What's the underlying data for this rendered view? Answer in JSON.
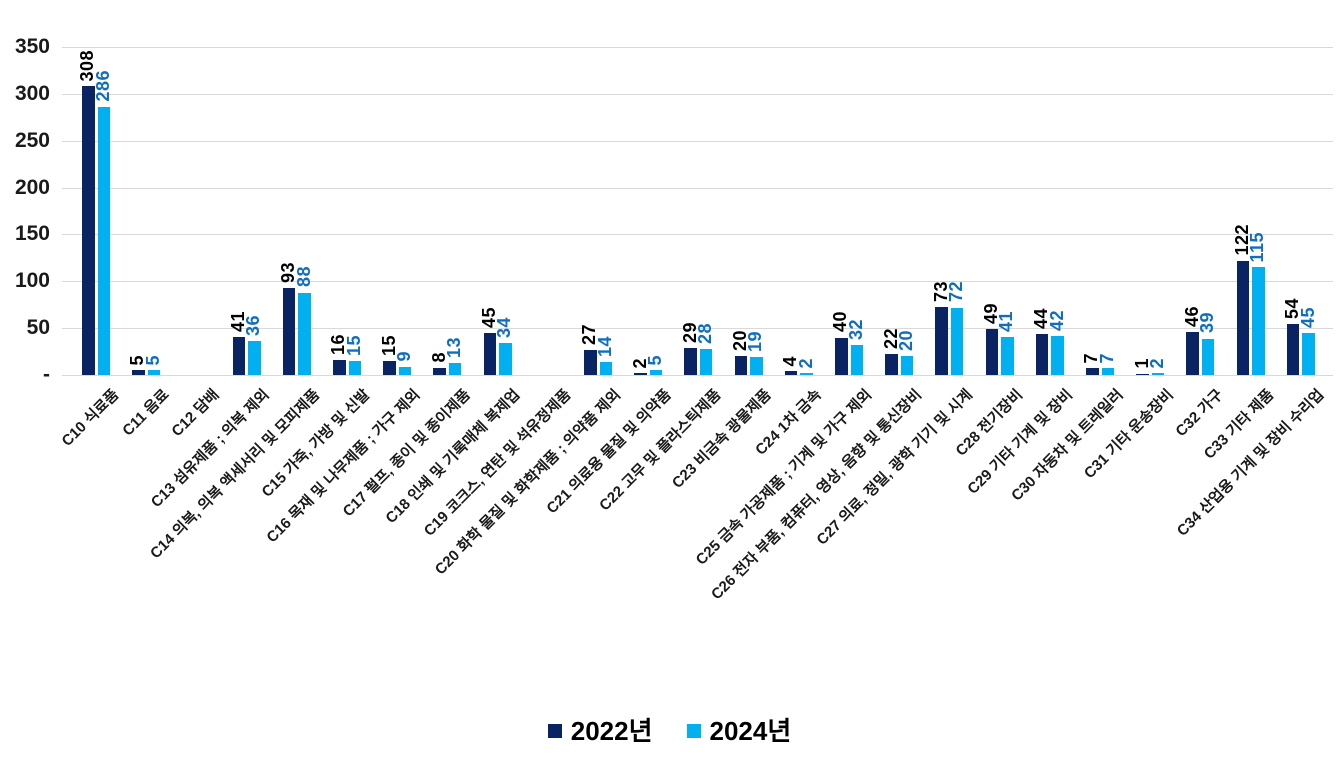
{
  "chart_data": {
    "type": "bar",
    "title": "",
    "categories": [
      "C10 식료품",
      "C11 음료",
      "C12 담배",
      "C13 섬유제품 ; 의복 제외",
      "C14 의복, 의복 액세서리 및 모피제품",
      "C15 가죽, 가방 및 신발",
      "C16 목재 및 나무제품 ; 가구 제외",
      "C17 펄프, 종이 및 종이제품",
      "C18 인쇄 및 기록매체 복제업",
      "C19 코크스, 연탄 및 석유정제품",
      "C20 화학 물질 및 화학제품 ; 의약품 제외",
      "C21 의료용 물질 및 의약품",
      "C22 고무 및 플라스틱제품",
      "C23 비금속 광물제품",
      "C24 1차 금속",
      "C25 금속 가공제품 ; 기계 및 가구 제외",
      "C26 전자 부품, 컴퓨터, 영상, 음향 및 통신장비",
      "C27 의료, 정밀, 광학 기기 및 시계",
      "C28 전기장비",
      "C29 기타 기계 및 장비",
      "C30 자동차 및 트레일러",
      "C31 기타 운송장비",
      "C32 가구",
      "C33 기타 제품",
      "C34 산업용 기계 및 장비 수리업"
    ],
    "series": [
      {
        "name": "2022년",
        "color": "#0a2363",
        "label_color": "#000000",
        "values": [
          308,
          5,
          0,
          41,
          93,
          16,
          15,
          8,
          45,
          0,
          27,
          2,
          29,
          20,
          4,
          40,
          22,
          73,
          49,
          44,
          7,
          1,
          46,
          122,
          54
        ]
      },
      {
        "name": "2024년",
        "color": "#00b0f0",
        "label_color": "#0f6ec0",
        "values": [
          286,
          5,
          0,
          36,
          88,
          15,
          9,
          13,
          34,
          0,
          14,
          5,
          28,
          19,
          2,
          32,
          20,
          72,
          41,
          42,
          7,
          2,
          39,
          115,
          45
        ]
      }
    ],
    "ylim": [
      0,
      350
    ],
    "y_tick_step": 50,
    "y_tick_labels": [
      "-",
      "50",
      "100",
      "150",
      "200",
      "250",
      "300",
      "350"
    ],
    "grid": "horizontal",
    "legend_position": "bottom-center",
    "value_labels": "rotated-vertical-above-bars",
    "x_labels_rotation_deg": 45,
    "zero_values_hidden": true
  }
}
